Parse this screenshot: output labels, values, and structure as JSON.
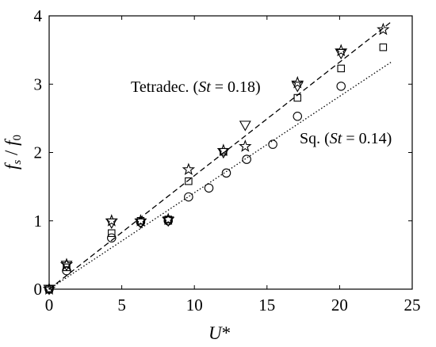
{
  "chart_data": {
    "type": "scatter",
    "xlabel": "U*",
    "ylabel": "fs / f0",
    "xlim": [
      0,
      25
    ],
    "ylim": [
      0,
      4
    ],
    "xticks": [
      "0",
      "5",
      "10",
      "15",
      "20",
      "25"
    ],
    "yticks": [
      "0",
      "1",
      "2",
      "3",
      "4"
    ],
    "grid": false,
    "series": [
      {
        "marker": "circle",
        "points": [
          [
            0,
            0
          ],
          [
            1.2,
            0.27
          ],
          [
            4.3,
            0.75
          ],
          [
            6.3,
            0.98
          ],
          [
            8.2,
            1.0
          ],
          [
            9.6,
            1.35
          ],
          [
            11.0,
            1.48
          ],
          [
            12.2,
            1.7
          ],
          [
            13.6,
            1.9
          ],
          [
            15.4,
            2.12
          ],
          [
            17.1,
            2.53
          ],
          [
            20.1,
            2.97
          ]
        ]
      },
      {
        "marker": "square",
        "points": [
          [
            0,
            0
          ],
          [
            1.2,
            0.32
          ],
          [
            4.3,
            0.82
          ],
          [
            6.3,
            1.0
          ],
          [
            8.2,
            1.02
          ],
          [
            9.6,
            1.58
          ],
          [
            12.0,
            2.01
          ],
          [
            17.1,
            2.8
          ],
          [
            20.1,
            3.23
          ],
          [
            23.0,
            3.54
          ]
        ]
      },
      {
        "marker": "triangle-down",
        "points": [
          [
            0,
            0
          ],
          [
            1.2,
            0.35
          ],
          [
            4.3,
            0.97
          ],
          [
            6.3,
            0.97
          ],
          [
            8.2,
            1.0
          ],
          [
            12.0,
            2.0
          ],
          [
            13.5,
            2.4
          ],
          [
            17.1,
            2.97
          ],
          [
            20.1,
            3.45
          ]
        ]
      },
      {
        "marker": "star",
        "points": [
          [
            0,
            0
          ],
          [
            1.2,
            0.36
          ],
          [
            4.3,
            1.0
          ],
          [
            6.3,
            1.0
          ],
          [
            8.2,
            1.02
          ],
          [
            9.6,
            1.75
          ],
          [
            12.0,
            2.03
          ],
          [
            13.5,
            2.09
          ],
          [
            17.1,
            3.02
          ],
          [
            20.1,
            3.49
          ],
          [
            23.0,
            3.8
          ]
        ]
      }
    ],
    "fit_lines": [
      {
        "style": "dashed",
        "label": "Tetradec. (St = 0.18)",
        "x": [
          0,
          23.6
        ],
        "y": [
          0,
          3.92
        ]
      },
      {
        "style": "dotted",
        "label": "Sq. (St = 0.14)",
        "x": [
          0,
          23.6
        ],
        "y": [
          0,
          3.33
        ]
      }
    ],
    "annotations": {
      "tetradec_name": "Tetradec. (",
      "tetradec_st": "St",
      "tetradec_val": " = 0.18)",
      "sq_name": "Sq. (",
      "sq_st": "St",
      "sq_val": " = 0.14)"
    },
    "axis_text": {
      "x_main": "U",
      "x_sup": "*",
      "y_f1": "f",
      "y_s": "s",
      "y_div": " / ",
      "y_f2": "f",
      "y_0": "0"
    }
  }
}
